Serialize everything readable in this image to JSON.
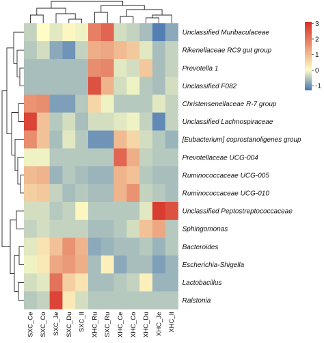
{
  "chart_data": {
    "type": "heatmap",
    "title": "",
    "xlabel": "",
    "ylabel": "",
    "rows": [
      "Unclassified Muribaculaceae",
      "Rikenellaceae RC9 gut group",
      "Prevotella 1",
      "Unclassified F082",
      "Christensenellaceae R-7 group",
      "Unclassified Lachnospiraceae",
      "[Eubacterium] coprostanoligenes group",
      "Prevotellaceae UCG-004",
      "Ruminococcaceae UCG-005",
      "Ruminococcaceae UCG-010",
      "Unclassified Peptostreptococcaceae",
      "Sphingomonas",
      "Bacteroides",
      "Escherichia-Shigella",
      "Lactobacillus",
      "Ralstonia"
    ],
    "columns": [
      "SXC_Ce",
      "SXC_Co",
      "SXC_Je",
      "SXC_Du",
      "SXC_Il",
      "XHC_Ru",
      "SXC_Ru",
      "XHC_Ce",
      "XHC_Co",
      "XHC_Du",
      "XHC_Je",
      "XHC_Il"
    ],
    "values": [
      [
        -0.4,
        0.0,
        -0.2,
        0.1,
        -0.1,
        1.9,
        2.3,
        -0.3,
        -0.4,
        -0.6,
        -1.2,
        -0.8
      ],
      [
        -0.5,
        -0.3,
        -0.8,
        -1.0,
        -0.4,
        1.2,
        1.3,
        1.0,
        0.8,
        -0.2,
        -0.6,
        -0.4
      ],
      [
        -0.6,
        -0.6,
        -0.6,
        -0.6,
        -0.6,
        1.7,
        1.8,
        -0.2,
        -0.3,
        0.8,
        -0.6,
        -0.4
      ],
      [
        -0.6,
        -0.6,
        -0.6,
        -0.6,
        -0.6,
        2.6,
        1.1,
        -0.3,
        -0.1,
        -0.5,
        -0.6,
        -0.3
      ],
      [
        1.6,
        1.7,
        -0.9,
        -0.9,
        -0.5,
        0.6,
        -0.1,
        -0.5,
        -0.5,
        -0.5,
        -0.2,
        -0.4
      ],
      [
        2.8,
        0.9,
        -0.5,
        -0.3,
        -0.6,
        -0.3,
        -0.3,
        -0.2,
        -0.1,
        -0.4,
        -1.1,
        -0.4
      ],
      [
        1.7,
        0.9,
        -0.6,
        -0.2,
        -0.5,
        -1.0,
        -1.0,
        1.0,
        0.6,
        -0.3,
        -0.5,
        -0.7
      ],
      [
        -0.1,
        -0.1,
        -0.5,
        -0.5,
        -0.5,
        -0.5,
        -0.5,
        2.3,
        1.2,
        -0.4,
        -0.5,
        -0.5
      ],
      [
        1.0,
        1.1,
        -0.7,
        -0.5,
        -0.6,
        -0.7,
        -0.7,
        1.1,
        0.9,
        -0.5,
        -0.6,
        -0.6
      ],
      [
        0.7,
        0.8,
        -0.4,
        -0.6,
        -0.5,
        -0.6,
        -0.6,
        1.1,
        1.6,
        -0.4,
        -0.5,
        -0.6
      ],
      [
        -0.3,
        -0.3,
        -0.5,
        -0.4,
        0.1,
        -0.5,
        -0.5,
        -0.5,
        -0.5,
        -0.2,
        2.9,
        2.6
      ],
      [
        -0.4,
        -0.3,
        -0.4,
        -0.4,
        -0.4,
        -0.6,
        -0.6,
        -0.5,
        -0.3,
        0.9,
        1.3,
        -0.5
      ],
      [
        -0.2,
        0.4,
        0.9,
        1.6,
        1.1,
        -0.8,
        -0.7,
        -0.6,
        -0.6,
        -0.5,
        -0.7,
        -0.5
      ],
      [
        -0.1,
        0.3,
        1.3,
        1.5,
        1.2,
        -0.6,
        0.2,
        -0.8,
        -0.6,
        -0.6,
        -0.9,
        -0.7
      ],
      [
        -0.3,
        -0.2,
        2.1,
        0.7,
        0.4,
        -0.6,
        -0.6,
        -0.5,
        -0.4,
        0.2,
        -0.7,
        -0.7
      ],
      [
        -0.5,
        -0.4,
        2.8,
        0.3,
        -0.3,
        -0.5,
        -0.5,
        -0.5,
        -0.5,
        -0.5,
        -0.5,
        -0.5
      ]
    ],
    "colorbar": {
      "ticks": [
        3,
        2,
        1,
        0,
        -1
      ],
      "min": -1.3,
      "max": 3.1,
      "colors": {
        "low": "#4575b4",
        "mid": "#fdfdc5",
        "high": "#d73027"
      }
    },
    "legend_position": "top-right"
  }
}
